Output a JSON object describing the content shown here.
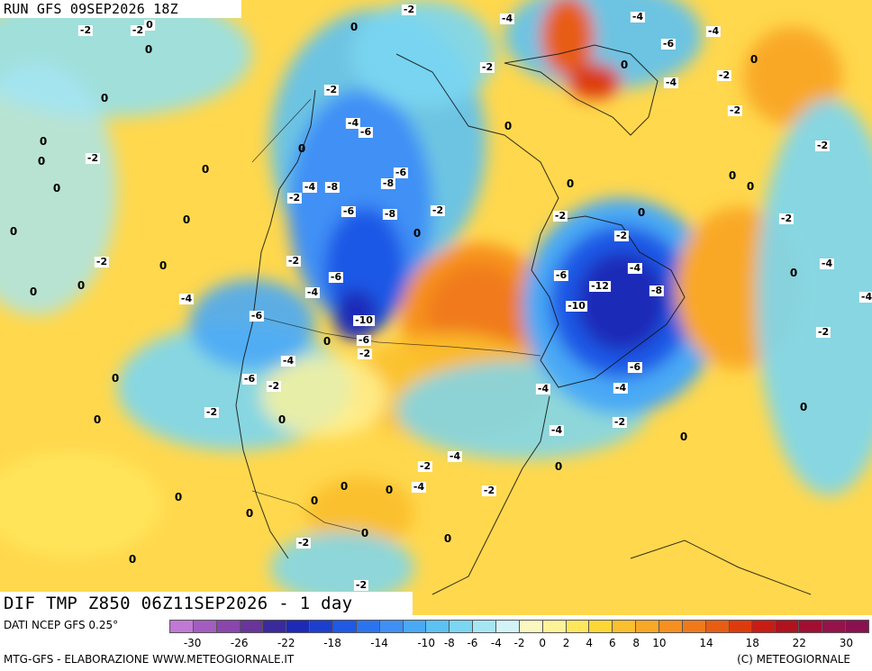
{
  "run_title": "RUN GFS 09SEP2026 18Z",
  "product_title": "DIF TMP Z850 06Z11SEP2026 - 1 day",
  "source": "DATI NCEP GFS 0.25°",
  "credit": "MTG-GFS - ELABORAZIONE WWW.METEOGIORNALE.IT",
  "copyright": "(C) METEOGIORNALE",
  "legend": {
    "colors": [
      "#c079d4",
      "#a45cc0",
      "#8a46ad",
      "#6b349a",
      "#3a2a9c",
      "#1d2ab8",
      "#1c3fd0",
      "#1f59e6",
      "#2b74f0",
      "#3f90f6",
      "#4aa9f5",
      "#5cc1f3",
      "#7ad6f2",
      "#a6e6f4",
      "#d2f4f6",
      "#fbf7c0",
      "#fff39a",
      "#ffe75c",
      "#fdd835",
      "#fbc02d",
      "#f9a825",
      "#f7901e",
      "#f07a1a",
      "#e85d12",
      "#dc3b0e",
      "#c91c14",
      "#b0121e",
      "#a10e32",
      "#96124a",
      "#8a1050"
    ],
    "ticks": [
      {
        "label": "-30",
        "value": -30
      },
      {
        "label": "-26",
        "value": -26
      },
      {
        "label": "-22",
        "value": -22
      },
      {
        "label": "-18",
        "value": -18
      },
      {
        "label": "-14",
        "value": -14
      },
      {
        "label": "-10",
        "value": -10
      },
      {
        "label": "-8",
        "value": -8
      },
      {
        "label": "-6",
        "value": -6
      },
      {
        "label": "-4",
        "value": -4
      },
      {
        "label": "-2",
        "value": -2
      },
      {
        "label": "0",
        "value": 0
      },
      {
        "label": "2",
        "value": 2
      },
      {
        "label": "4",
        "value": 4
      },
      {
        "label": "6",
        "value": 6
      },
      {
        "label": "8",
        "value": 8
      },
      {
        "label": "10",
        "value": 10
      },
      {
        "label": "14",
        "value": 14
      },
      {
        "label": "18",
        "value": 18
      },
      {
        "label": "22",
        "value": 22
      },
      {
        "label": "30",
        "value": 30
      }
    ]
  },
  "contour_labels": [
    "-2",
    "-4",
    "-2",
    "-2",
    "0",
    "-4",
    "-6",
    "-8",
    "-4",
    "-6",
    "-2",
    "-2",
    "-4",
    "-6",
    "-4",
    "-8",
    "-6",
    "-8",
    "-2",
    "-2",
    "-2",
    "-4",
    "-6",
    "-4",
    "-6",
    "-10",
    "-6",
    "-2",
    "-4",
    "-6",
    "-2",
    "-2",
    "-12",
    "-10",
    "-8",
    "-6",
    "-4",
    "-4",
    "-4",
    "-2",
    "-2",
    "-2",
    "-4",
    "-2",
    "-4",
    "-2",
    "-6",
    "-2",
    "-4",
    "-2",
    "-2",
    "-4",
    "-4",
    "-2",
    "-2",
    "-4",
    "-2",
    "-2",
    "-2",
    "-2"
  ],
  "zero_labels": [
    "0",
    "0",
    "0",
    "0",
    "0",
    "0",
    "0",
    "0",
    "0",
    "0",
    "0",
    "0",
    "0",
    "0",
    "0",
    "0",
    "0",
    "0",
    "0",
    "0",
    "0",
    "0",
    "0",
    "0",
    "0",
    "0",
    "0",
    "0",
    "0",
    "0",
    "0",
    "0",
    "0",
    "0",
    "0",
    "0",
    "0"
  ]
}
